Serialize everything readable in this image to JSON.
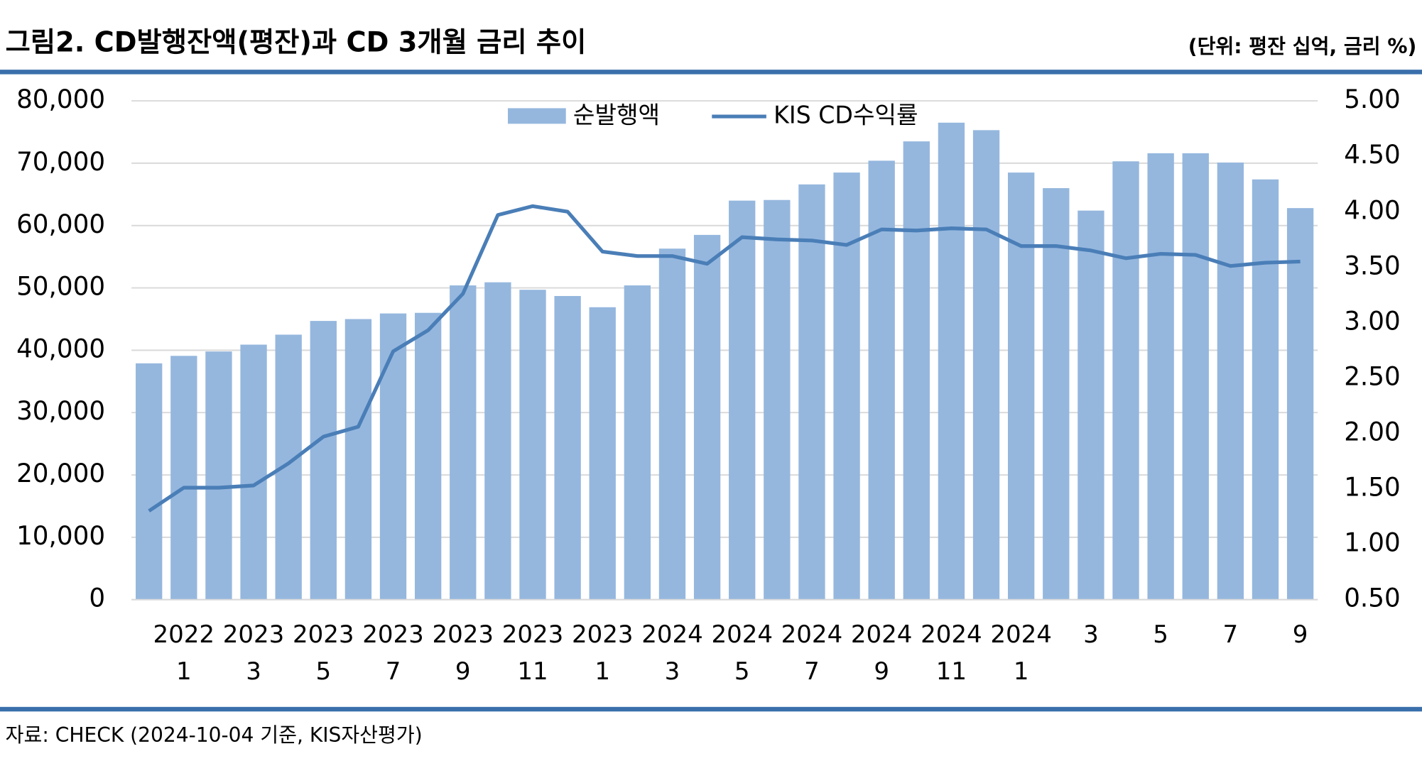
{
  "chart_data": {
    "type": "bar_line",
    "title": "그림2. CD발행잔액(평잔)과 CD 3개월 금리 추이",
    "subtitle": "(단위: 평잔 십억, 금리 %)",
    "source": "자료: CHECK (2024-10-04 기준, KIS자산평가)",
    "categories": [
      null,
      "2022\n1",
      null,
      "2023\n3",
      null,
      "2023\n5",
      null,
      "2023\n7",
      null,
      "2023\n9",
      null,
      "2023\n11",
      null,
      "2023\n1",
      null,
      "2024\n3",
      null,
      "2024\n5",
      null,
      "2024\n7",
      null,
      "2024\n9",
      null,
      "2024\n11",
      null,
      "2024\n1",
      null,
      "3",
      null,
      "5",
      null,
      "7",
      null,
      "9"
    ],
    "series": [
      {
        "name": "순발행액",
        "color": "#95b7de",
        "values": [
          37900,
          39100,
          39800,
          40900,
          42500,
          44700,
          45000,
          45900,
          46000,
          50400,
          50900,
          49700,
          48700,
          46900,
          50400,
          56300,
          58500,
          64000,
          64100,
          66600,
          68500,
          70400,
          73500,
          76500,
          75300,
          68500,
          66000,
          62400,
          70300,
          71600,
          71600,
          70100,
          67400,
          62800
        ]
      },
      {
        "name": "KIS CD수익률",
        "color": "#4a7eb7",
        "axis": "y2",
        "values": [
          1.3,
          1.51,
          1.51,
          1.53,
          1.73,
          1.97,
          2.06,
          2.74,
          2.93,
          3.26,
          3.97,
          4.05,
          4.0,
          3.64,
          3.6,
          3.6,
          3.53,
          3.77,
          3.75,
          3.74,
          3.7,
          3.84,
          3.83,
          3.85,
          3.84,
          3.69,
          3.69,
          3.65,
          3.58,
          3.62,
          3.61,
          3.51,
          3.54,
          3.55
        ]
      }
    ],
    "ylim": [
      0,
      80000
    ],
    "yticks": [
      0,
      {
        "value": 10000,
        "label": "10,000"
      },
      {
        "value": 20000,
        "label": "20,000"
      },
      {
        "value": 30000,
        "label": "30,000"
      },
      {
        "value": 40000,
        "label": "40,000"
      },
      {
        "value": 50000,
        "label": "50,000"
      },
      {
        "value": 60000,
        "label": "60,000"
      },
      {
        "value": 70000,
        "label": "70,000"
      },
      {
        "value": 80000,
        "label": "80,000"
      }
    ],
    "y2lim": [
      0.5,
      5.0
    ],
    "y2ticks": [
      {
        "value": 0.5,
        "label": "0.50"
      },
      {
        "value": 1.0,
        "label": "1.00"
      },
      {
        "value": 1.5,
        "label": "1.50"
      },
      {
        "value": 2.0,
        "label": "2.00"
      },
      {
        "value": 2.5,
        "label": "2.50"
      },
      {
        "value": 3.0,
        "label": "3.00"
      },
      {
        "value": 3.5,
        "label": "3.50"
      },
      {
        "value": 4.0,
        "label": "4.00"
      },
      {
        "value": 4.5,
        "label": "4.50"
      },
      {
        "value": 5.0,
        "label": "5.00"
      }
    ],
    "grid": true,
    "legend": "top"
  }
}
